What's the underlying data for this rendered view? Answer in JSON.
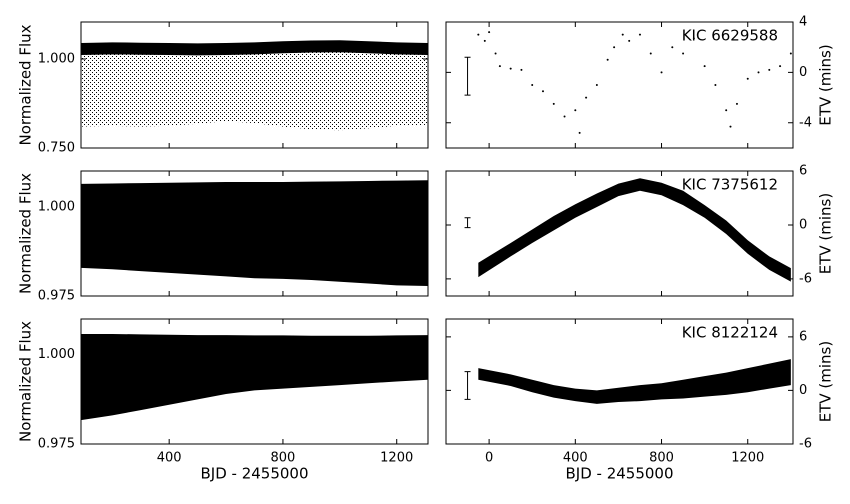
{
  "chart_data": [
    {
      "type": "band",
      "x": [
        90,
        200,
        300,
        400,
        500,
        600,
        700,
        800,
        900,
        1000,
        1100,
        1200,
        1310
      ],
      "high": [
        1.028,
        1.03,
        1.029,
        1.028,
        1.027,
        1.028,
        1.03,
        1.033,
        1.035,
        1.036,
        1.033,
        1.03,
        1.028
      ],
      "low": [
        0.81,
        0.812,
        0.81,
        0.812,
        0.818,
        0.825,
        0.82,
        0.81,
        0.802,
        0.8,
        0.805,
        0.812,
        0.815
      ],
      "sparse": true,
      "color": "#000000",
      "ylabel": "Normalized Flux",
      "xlim": [
        90,
        1310
      ],
      "xticks": [
        400,
        800,
        1200
      ],
      "xticklabels": false,
      "ylim": [
        0.75,
        1.104
      ],
      "yticks": [
        {
          "value": 0.75,
          "label": "0.750"
        },
        {
          "value": 1.0,
          "label": "1.000"
        }
      ]
    },
    {
      "type": "scatter",
      "x": [
        -50,
        -20,
        0,
        30,
        50,
        100,
        150,
        200,
        250,
        300,
        350,
        400,
        420,
        450,
        500,
        550,
        580,
        620,
        650,
        700,
        750,
        800,
        850,
        900,
        950,
        1000,
        1050,
        1100,
        1120,
        1150,
        1200,
        1250,
        1300,
        1350,
        1400
      ],
      "values": [
        3,
        2.5,
        3.2,
        1.5,
        0.5,
        0.3,
        0.2,
        -1,
        -1.5,
        -2.5,
        -3.5,
        -3,
        -4.8,
        -2,
        -1,
        1,
        2,
        3,
        2.5,
        3,
        1.5,
        0,
        2,
        1.5,
        2.7,
        0.5,
        -1,
        -3,
        -4.3,
        -2.5,
        -0.5,
        0,
        0.2,
        0.5,
        1.5
      ],
      "color": "#000000",
      "annotation": "KIC 6629588",
      "errorbar": {
        "x": -100,
        "value": -0.3,
        "error": 1.5
      },
      "ylabel": "ETV (mins)",
      "xlim": [
        -200,
        1410
      ],
      "xticks": [
        0,
        400,
        800,
        1200
      ],
      "xticklabels": false,
      "ylim": [
        -6,
        4
      ],
      "yticks": [
        -4,
        0,
        4
      ]
    },
    {
      "type": "band",
      "x": [
        90,
        200,
        300,
        400,
        500,
        600,
        700,
        800,
        900,
        1000,
        1100,
        1200,
        1310
      ],
      "high": [
        1.0065,
        1.0066,
        1.0067,
        1.0068,
        1.0069,
        1.007,
        1.007,
        1.007,
        1.0071,
        1.0072,
        1.0073,
        1.0074,
        1.0075
      ],
      "low": [
        0.9829,
        0.9825,
        0.982,
        0.9815,
        0.981,
        0.9805,
        0.98,
        0.9798,
        0.9795,
        0.979,
        0.9785,
        0.978,
        0.9778
      ],
      "sparse": false,
      "color": "#000000",
      "ylabel": "Normalized Flux",
      "xlim": [
        90,
        1310
      ],
      "xticks": [
        400,
        800,
        1200
      ],
      "xticklabels": false,
      "ylim": [
        0.975,
        1.0101
      ],
      "yticks": [
        {
          "value": 0.975,
          "label": "0.975"
        },
        {
          "value": 1.0,
          "label": "1.000"
        }
      ]
    },
    {
      "type": "band",
      "x": [
        -50,
        100,
        200,
        300,
        400,
        500,
        600,
        700,
        800,
        900,
        1000,
        1100,
        1200,
        1300,
        1400
      ],
      "high": [
        -4.2,
        -2,
        -0.5,
        1,
        2.3,
        3.5,
        4.6,
        5.2,
        4.7,
        3.8,
        2.2,
        0.5,
        -1.7,
        -3.5,
        -4.8
      ],
      "low": [
        -5.8,
        -3.5,
        -2,
        -0.6,
        0.8,
        2,
        3.2,
        3.8,
        3.3,
        2.2,
        0.8,
        -1,
        -3.2,
        -5,
        -6.3
      ],
      "color": "#000000",
      "annotation": "KIC 7375612",
      "errorbar": {
        "x": -100,
        "value": 0.25,
        "error": 0.55
      },
      "ylabel": "ETV (mins)",
      "xlim": [
        -200,
        1410
      ],
      "xticks": [
        0,
        400,
        800,
        1200
      ],
      "xticklabels": false,
      "ylim": [
        -7.9,
        6
      ],
      "yticks": [
        -6,
        0,
        6
      ]
    },
    {
      "type": "band",
      "x": [
        90,
        200,
        300,
        400,
        500,
        600,
        700,
        800,
        900,
        1000,
        1100,
        1200,
        1310
      ],
      "high": [
        1.0058,
        1.0058,
        1.0057,
        1.0056,
        1.0055,
        1.0055,
        1.0054,
        1.0054,
        1.0053,
        1.0053,
        1.0053,
        1.0054,
        1.0055
      ],
      "low": [
        0.9817,
        0.983,
        0.9845,
        0.986,
        0.9875,
        0.989,
        0.99,
        0.9905,
        0.991,
        0.9915,
        0.992,
        0.9925,
        0.993
      ],
      "sparse": false,
      "color": "#000000",
      "ylabel": "Normalized Flux",
      "xlabel": "BJD - 2455000",
      "xlim": [
        90,
        1310
      ],
      "xticks": [
        400,
        800,
        1200
      ],
      "xticklabels": true,
      "ylim": [
        0.975,
        1.01
      ],
      "yticks": [
        {
          "value": 0.975,
          "label": "0.975"
        },
        {
          "value": 1.0,
          "label": "1.000"
        }
      ]
    },
    {
      "type": "band",
      "x": [
        -50,
        100,
        200,
        300,
        400,
        500,
        600,
        700,
        800,
        900,
        1000,
        1100,
        1200,
        1300,
        1400
      ],
      "high": [
        2.5,
        1.8,
        1.2,
        0.6,
        0.2,
        0,
        0.3,
        0.6,
        0.8,
        1.2,
        1.6,
        2,
        2.5,
        3,
        3.5
      ],
      "low": [
        1.2,
        0.5,
        -0.2,
        -0.8,
        -1.2,
        -1.5,
        -1.3,
        -1.2,
        -1,
        -0.9,
        -0.7,
        -0.5,
        -0.2,
        0.2,
        0.6
      ],
      "color": "#000000",
      "annotation": "KIC 8122124",
      "errorbar": {
        "x": -100,
        "value": 0.55,
        "error": 1.55
      },
      "ylabel": "ETV (mins)",
      "xlabel": "BJD - 2455000",
      "xlim": [
        -200,
        1410
      ],
      "xticks": [
        0,
        400,
        800,
        1200
      ],
      "xticklabels": true,
      "ylim": [
        -6,
        8
      ],
      "yticks": [
        -6,
        0,
        6
      ]
    }
  ]
}
